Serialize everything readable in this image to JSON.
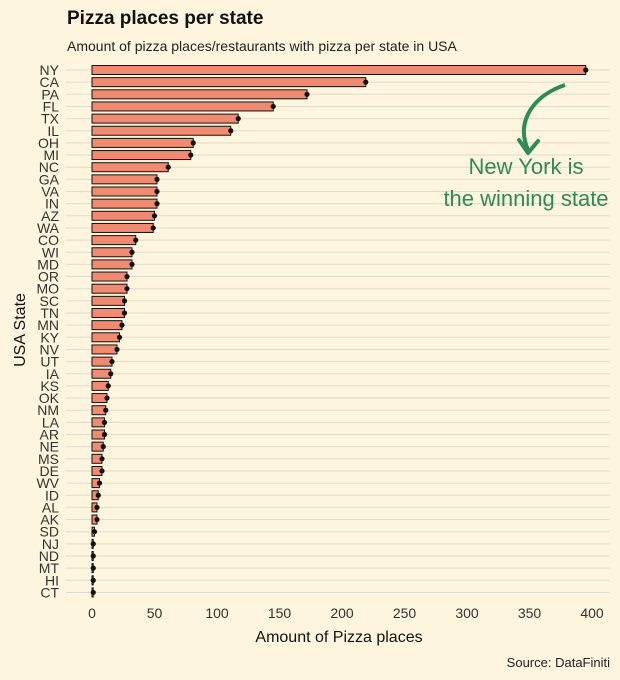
{
  "chart_data": {
    "type": "bar",
    "orientation": "horizontal",
    "title": "Pizza places per state",
    "subtitle": "Amount of pizza places/restaurants with pizza per state in USA",
    "xlabel": "Amount of Pizza places",
    "ylabel": "USA State",
    "source": "Source: DataFiniti",
    "xlim": [
      0,
      400
    ],
    "xticks": [
      "0",
      "50",
      "100",
      "150",
      "200",
      "250",
      "300",
      "350",
      "400"
    ],
    "grid": true,
    "categories": [
      "NY",
      "CA",
      "PA",
      "FL",
      "TX",
      "IL",
      "OH",
      "MI",
      "NC",
      "GA",
      "VA",
      "IN",
      "AZ",
      "WA",
      "CO",
      "WI",
      "MD",
      "OR",
      "MO",
      "SC",
      "TN",
      "MN",
      "KY",
      "NV",
      "UT",
      "IA",
      "KS",
      "OK",
      "NM",
      "LA",
      "AR",
      "NE",
      "MS",
      "DE",
      "WV",
      "ID",
      "AL",
      "AK",
      "SD",
      "NJ",
      "ND",
      "MT",
      "HI",
      "CT"
    ],
    "values": [
      395,
      219,
      172,
      145,
      117,
      111,
      81,
      79,
      61,
      52,
      52,
      52,
      50,
      49,
      35,
      32,
      32,
      28,
      28,
      26,
      26,
      24,
      22,
      20,
      16,
      15,
      13,
      12,
      11,
      10,
      10,
      9,
      8,
      8,
      6,
      5,
      4,
      4,
      2,
      1,
      1,
      1,
      1,
      1
    ],
    "annotation": {
      "line1": "New York is",
      "line2": "the winning state"
    },
    "colors": {
      "bar_fill": "#f08a70",
      "bar_stroke": "#111111",
      "point": "#111111",
      "annotation": "#2e8b57",
      "background": "#fdf5dd",
      "grid": "#dddbc9"
    }
  }
}
